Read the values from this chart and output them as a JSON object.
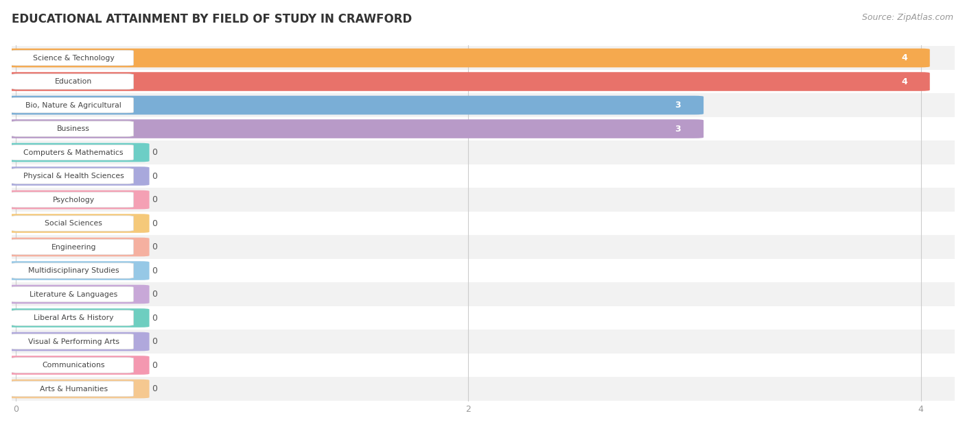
{
  "title": "EDUCATIONAL ATTAINMENT BY FIELD OF STUDY IN CRAWFORD",
  "source": "Source: ZipAtlas.com",
  "categories": [
    "Science & Technology",
    "Education",
    "Bio, Nature & Agricultural",
    "Business",
    "Computers & Mathematics",
    "Physical & Health Sciences",
    "Psychology",
    "Social Sciences",
    "Engineering",
    "Multidisciplinary Studies",
    "Literature & Languages",
    "Liberal Arts & History",
    "Visual & Performing Arts",
    "Communications",
    "Arts & Humanities"
  ],
  "values": [
    4,
    4,
    3,
    3,
    0,
    0,
    0,
    0,
    0,
    0,
    0,
    0,
    0,
    0,
    0
  ],
  "bar_colors": [
    "#F5A94E",
    "#E8726A",
    "#7AAED6",
    "#B89AC8",
    "#6DCEC6",
    "#A8A8DC",
    "#F4A0B4",
    "#F5C97A",
    "#F5B0A0",
    "#96C8E6",
    "#C8A8D8",
    "#6ECEC0",
    "#B0A8DC",
    "#F498B0",
    "#F5C890"
  ],
  "xlim": [
    0,
    4.15
  ],
  "xticks": [
    0,
    2,
    4
  ],
  "background_color": "#FFFFFF",
  "row_bg_even": "#F2F2F2",
  "row_bg_odd": "#FFFFFF",
  "title_fontsize": 12,
  "source_fontsize": 9,
  "bar_label_fontsize": 9,
  "tick_fontsize": 9,
  "zero_bar_width": 0.55
}
